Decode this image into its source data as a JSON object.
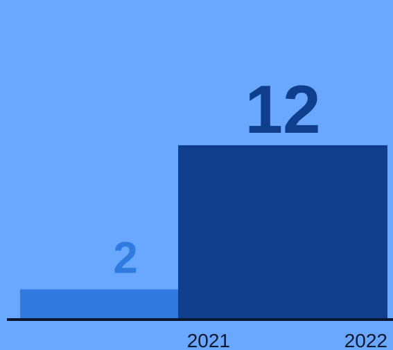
{
  "chart_data": {
    "type": "bar",
    "categories": [
      "2021",
      "2022"
    ],
    "values": [
      2,
      12
    ],
    "ylim": [
      0,
      12
    ],
    "grid": false,
    "legend": "none",
    "colors": {
      "background": "#6aa8ff",
      "bars": [
        "#2f7be0",
        "#0f3f8c"
      ],
      "labels": [
        "#2f7be0",
        "#0f3f8c"
      ],
      "axis": "#0b1830",
      "tick_text": "#0b1830"
    }
  }
}
